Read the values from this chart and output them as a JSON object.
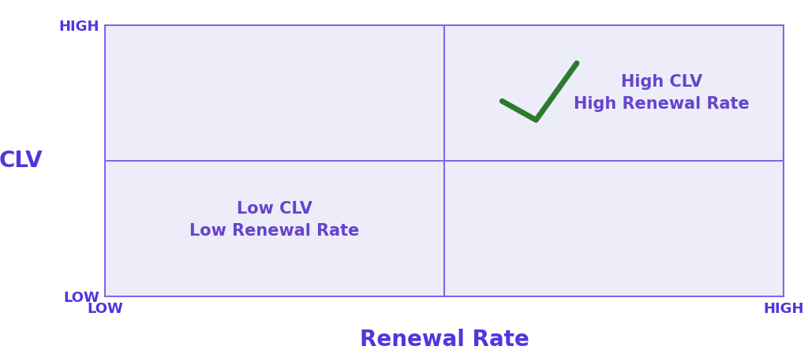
{
  "background_color": "#ffffff",
  "plot_bg_color": "#ededfa",
  "border_color": "#7b68ee",
  "axis_label_color": "#5533dd",
  "tick_label_color": "#5533dd",
  "quadrant_text_color": "#6644cc",
  "checkmark_color": "#2d7a2d",
  "xlabel": "Renewal Rate",
  "ylabel": "CLV",
  "x_tick_low": "LOW",
  "x_tick_high": "HIGH",
  "y_tick_low": "LOW",
  "y_tick_high": "HIGH",
  "top_right_line1": "High CLV",
  "top_right_line2": "High Renewal Rate",
  "bottom_left_line1": "Low CLV",
  "bottom_left_line2": "Low Renewal Rate",
  "xlabel_fontsize": 20,
  "ylabel_fontsize": 20,
  "tick_fontsize": 13,
  "quadrant_fontsize": 15,
  "axis_label_fontweight": "bold",
  "quadrant_text_fontweight": "bold"
}
